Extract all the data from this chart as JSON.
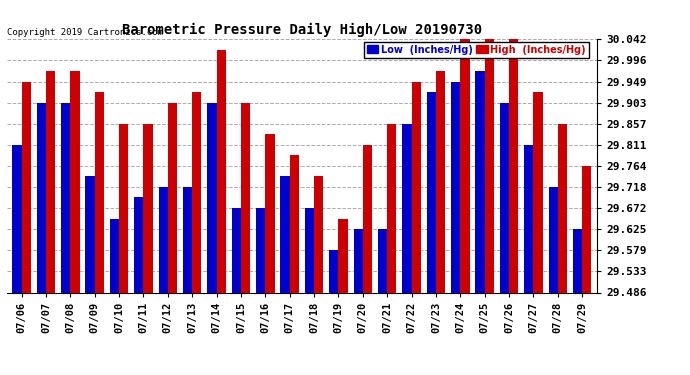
{
  "title": "Barometric Pressure Daily High/Low 20190730",
  "copyright": "Copyright 2019 Cartronics.com",
  "legend_low": "Low  (Inches/Hg)",
  "legend_high": "High  (Inches/Hg)",
  "dates": [
    "07/06",
    "07/07",
    "07/08",
    "07/09",
    "07/10",
    "07/11",
    "07/12",
    "07/13",
    "07/14",
    "07/15",
    "07/16",
    "07/17",
    "07/18",
    "07/19",
    "07/20",
    "07/21",
    "07/22",
    "07/23",
    "07/24",
    "07/25",
    "07/26",
    "07/27",
    "07/28",
    "07/29"
  ],
  "low_values": [
    29.811,
    29.903,
    29.903,
    29.741,
    29.648,
    29.695,
    29.718,
    29.718,
    29.903,
    29.672,
    29.672,
    29.741,
    29.672,
    29.579,
    29.625,
    29.625,
    29.857,
    29.926,
    29.949,
    29.972,
    29.903,
    29.811,
    29.718,
    29.625
  ],
  "high_values": [
    29.949,
    29.972,
    29.972,
    29.926,
    29.857,
    29.857,
    29.903,
    29.926,
    30.019,
    29.903,
    29.834,
    29.787,
    29.741,
    29.648,
    29.811,
    29.857,
    29.949,
    29.972,
    30.042,
    30.042,
    30.042,
    29.926,
    29.857,
    29.764
  ],
  "ymin": 29.486,
  "ymax": 30.042,
  "yticks": [
    29.486,
    29.533,
    29.579,
    29.625,
    29.672,
    29.718,
    29.764,
    29.811,
    29.857,
    29.903,
    29.949,
    29.996,
    30.042
  ],
  "low_color": "#0000cc",
  "high_color": "#cc0000",
  "bg_color": "#ffffff",
  "grid_color": "#888888",
  "bar_width": 0.38
}
